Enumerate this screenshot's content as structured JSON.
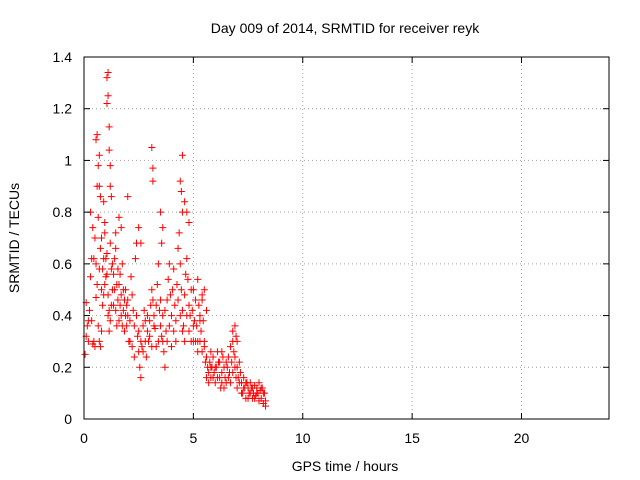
{
  "chart_data": {
    "type": "scatter",
    "title": "Day 009 of 2014, SRMTID for receiver reyk",
    "xlabel": "GPS time / hours",
    "ylabel": "SRMTID / TECUs",
    "xlim": [
      0,
      24
    ],
    "ylim": [
      0,
      1.4
    ],
    "x_ticks": [
      0,
      5,
      10,
      15,
      20
    ],
    "x_tick_labels": [
      "0",
      "5",
      "10",
      "15",
      "20"
    ],
    "y_ticks": [
      0,
      0.2,
      0.4,
      0.6,
      0.8,
      1.0,
      1.2,
      1.4
    ],
    "y_tick_labels": [
      "0",
      "0.2",
      "0.4",
      "0.6",
      "0.8",
      "1",
      "1.2",
      "1.4"
    ],
    "grid": true,
    "marker": "plus",
    "series": [
      {
        "name": "SRMTID",
        "color": "#ff0000",
        "points": [
          [
            0.05,
            0.25
          ],
          [
            0.1,
            0.32
          ],
          [
            0.15,
            0.36
          ],
          [
            0.2,
            0.3
          ],
          [
            0.25,
            0.42
          ],
          [
            0.3,
            0.55
          ],
          [
            0.35,
            0.38
          ],
          [
            0.4,
            0.29
          ],
          [
            0.45,
            0.62
          ],
          [
            0.5,
            0.7
          ],
          [
            0.55,
            0.47
          ],
          [
            0.6,
            0.9
          ],
          [
            0.65,
            0.78
          ],
          [
            0.7,
            0.58
          ],
          [
            0.75,
            0.66
          ],
          [
            0.8,
            0.5
          ],
          [
            0.85,
            0.44
          ],
          [
            0.9,
            0.62
          ],
          [
            0.95,
            0.72
          ],
          [
            1.0,
            0.55
          ],
          [
            1.05,
            0.64
          ],
          [
            1.1,
            0.4
          ],
          [
            1.15,
            0.34
          ],
          [
            1.2,
            0.68
          ],
          [
            1.25,
            0.58
          ],
          [
            1.3,
            0.5
          ],
          [
            1.35,
            0.44
          ],
          [
            1.4,
            0.62
          ],
          [
            1.45,
            0.66
          ],
          [
            1.5,
            0.52
          ],
          [
            1.55,
            0.46
          ],
          [
            1.6,
            0.38
          ],
          [
            1.65,
            0.56
          ],
          [
            1.7,
            0.48
          ],
          [
            1.75,
            0.6
          ],
          [
            1.8,
            0.42
          ],
          [
            1.85,
            0.34
          ],
          [
            1.9,
            0.5
          ],
          [
            1.95,
            0.44
          ],
          [
            2.0,
            0.4
          ],
          [
            2.05,
            0.3
          ],
          [
            2.1,
            0.38
          ],
          [
            2.15,
            0.55
          ],
          [
            2.2,
            0.48
          ],
          [
            2.25,
            0.42
          ],
          [
            2.3,
            0.36
          ],
          [
            2.35,
            0.62
          ],
          [
            2.4,
            0.68
          ],
          [
            2.45,
            0.32
          ],
          [
            2.5,
            0.26
          ],
          [
            2.55,
            0.2
          ],
          [
            2.6,
            0.16
          ],
          [
            2.65,
            0.28
          ],
          [
            2.7,
            0.36
          ],
          [
            2.75,
            0.42
          ],
          [
            2.8,
            0.3
          ],
          [
            2.85,
            0.24
          ],
          [
            2.9,
            0.34
          ],
          [
            2.95,
            0.3
          ],
          [
            3.0,
            0.38
          ],
          [
            3.05,
            0.44
          ],
          [
            3.1,
            0.5
          ],
          [
            3.15,
            0.46
          ],
          [
            3.2,
            0.4
          ],
          [
            3.25,
            0.35
          ],
          [
            3.3,
            0.28
          ],
          [
            3.35,
            0.52
          ],
          [
            3.4,
            0.6
          ],
          [
            3.45,
            0.42
          ],
          [
            3.5,
            0.36
          ],
          [
            3.55,
            0.32
          ],
          [
            3.6,
            0.3
          ],
          [
            3.65,
            0.26
          ],
          [
            3.7,
            0.2
          ],
          [
            3.75,
            0.34
          ],
          [
            3.8,
            0.46
          ],
          [
            3.85,
            0.54
          ],
          [
            3.9,
            0.6
          ],
          [
            3.95,
            0.48
          ],
          [
            4.0,
            0.4
          ],
          [
            4.05,
            0.5
          ],
          [
            4.1,
            0.58
          ],
          [
            4.15,
            0.44
          ],
          [
            4.2,
            0.38
          ],
          [
            4.25,
            0.52
          ],
          [
            4.3,
            0.66
          ],
          [
            4.35,
            0.72
          ],
          [
            4.4,
            0.6
          ],
          [
            4.45,
            0.5
          ],
          [
            4.5,
            0.42
          ],
          [
            4.55,
            0.36
          ],
          [
            4.6,
            0.48
          ],
          [
            4.65,
            0.56
          ],
          [
            4.7,
            0.62
          ],
          [
            4.75,
            0.54
          ],
          [
            4.8,
            0.44
          ],
          [
            4.85,
            0.4
          ],
          [
            4.9,
            0.5
          ],
          [
            4.95,
            0.42
          ],
          [
            5.0,
            0.3
          ],
          [
            5.05,
            0.38
          ],
          [
            5.1,
            0.46
          ],
          [
            5.15,
            0.36
          ],
          [
            5.2,
            0.3
          ],
          [
            5.25,
            0.44
          ],
          [
            5.3,
            0.4
          ],
          [
            5.35,
            0.34
          ],
          [
            5.4,
            0.46
          ],
          [
            5.45,
            0.38
          ],
          [
            5.5,
            0.28
          ],
          [
            5.55,
            0.22
          ],
          [
            5.6,
            0.24
          ],
          [
            5.65,
            0.2
          ],
          [
            5.7,
            0.18
          ],
          [
            5.75,
            0.22
          ],
          [
            5.8,
            0.16
          ],
          [
            5.85,
            0.2
          ],
          [
            5.9,
            0.24
          ],
          [
            5.95,
            0.18
          ],
          [
            6.0,
            0.14
          ],
          [
            6.05,
            0.2
          ],
          [
            6.1,
            0.26
          ],
          [
            6.15,
            0.22
          ],
          [
            6.2,
            0.16
          ],
          [
            6.25,
            0.12
          ],
          [
            6.3,
            0.18
          ],
          [
            6.35,
            0.24
          ],
          [
            6.4,
            0.2
          ],
          [
            6.45,
            0.16
          ],
          [
            6.5,
            0.14
          ],
          [
            6.55,
            0.2
          ],
          [
            6.6,
            0.24
          ],
          [
            6.65,
            0.18
          ],
          [
            6.7,
            0.28
          ],
          [
            6.75,
            0.22
          ],
          [
            6.8,
            0.3
          ],
          [
            6.85,
            0.26
          ],
          [
            6.9,
            0.2
          ],
          [
            6.95,
            0.16
          ],
          [
            7.0,
            0.12
          ],
          [
            7.05,
            0.16
          ],
          [
            7.1,
            0.22
          ],
          [
            7.15,
            0.18
          ],
          [
            7.2,
            0.14
          ],
          [
            7.25,
            0.1
          ],
          [
            7.3,
            0.16
          ],
          [
            7.35,
            0.12
          ],
          [
            7.4,
            0.08
          ],
          [
            7.45,
            0.14
          ],
          [
            7.5,
            0.12
          ],
          [
            7.55,
            0.1
          ],
          [
            7.6,
            0.14
          ],
          [
            7.65,
            0.12
          ],
          [
            7.7,
            0.08
          ],
          [
            7.75,
            0.1
          ],
          [
            7.8,
            0.13
          ],
          [
            7.85,
            0.09
          ],
          [
            7.9,
            0.12
          ],
          [
            7.95,
            0.1
          ],
          [
            8.0,
            0.14
          ],
          [
            8.05,
            0.11
          ],
          [
            8.1,
            0.08
          ],
          [
            8.15,
            0.12
          ],
          [
            8.2,
            0.06
          ],
          [
            8.25,
            0.1
          ],
          [
            8.3,
            0.05
          ],
          [
            0.1,
            0.45
          ],
          [
            0.2,
            0.38
          ],
          [
            0.3,
            0.8
          ],
          [
            0.35,
            0.62
          ],
          [
            0.4,
            0.74
          ],
          [
            0.45,
            0.3
          ],
          [
            0.5,
            0.28
          ],
          [
            0.55,
            0.6
          ],
          [
            0.6,
            0.52
          ],
          [
            0.65,
            0.36
          ],
          [
            0.7,
            0.3
          ],
          [
            0.75,
            0.28
          ],
          [
            0.8,
            0.34
          ],
          [
            0.85,
            0.58
          ],
          [
            0.9,
            0.48
          ],
          [
            0.95,
            0.52
          ],
          [
            1.0,
            0.62
          ],
          [
            1.05,
            0.56
          ],
          [
            1.1,
            0.48
          ],
          [
            1.15,
            0.42
          ],
          [
            1.2,
            0.38
          ],
          [
            1.25,
            0.44
          ],
          [
            1.3,
            0.6
          ],
          [
            1.35,
            0.56
          ],
          [
            1.4,
            0.5
          ],
          [
            1.45,
            0.42
          ],
          [
            1.5,
            0.36
          ],
          [
            1.55,
            0.58
          ],
          [
            1.6,
            0.52
          ],
          [
            1.65,
            0.44
          ],
          [
            1.7,
            0.4
          ],
          [
            1.75,
            0.36
          ],
          [
            1.8,
            0.5
          ],
          [
            1.85,
            0.46
          ],
          [
            1.9,
            0.4
          ],
          [
            1.95,
            0.36
          ],
          [
            2.0,
            0.46
          ],
          [
            2.1,
            0.3
          ],
          [
            2.2,
            0.28
          ],
          [
            2.3,
            0.24
          ],
          [
            2.4,
            0.4
          ],
          [
            2.5,
            0.34
          ],
          [
            2.6,
            0.3
          ],
          [
            2.7,
            0.26
          ],
          [
            2.8,
            0.38
          ],
          [
            2.9,
            0.4
          ],
          [
            3.0,
            0.32
          ],
          [
            3.1,
            0.28
          ],
          [
            3.2,
            0.36
          ],
          [
            3.3,
            0.44
          ],
          [
            3.4,
            0.3
          ],
          [
            3.5,
            0.46
          ],
          [
            3.6,
            0.4
          ],
          [
            3.7,
            0.42
          ],
          [
            3.8,
            0.3
          ],
          [
            3.9,
            0.36
          ],
          [
            4.0,
            0.28
          ],
          [
            4.1,
            0.34
          ],
          [
            4.2,
            0.3
          ],
          [
            4.3,
            0.46
          ],
          [
            4.4,
            0.4
          ],
          [
            4.5,
            0.34
          ],
          [
            4.6,
            0.3
          ],
          [
            4.7,
            0.4
          ],
          [
            4.8,
            0.34
          ],
          [
            4.9,
            0.3
          ],
          [
            5.0,
            0.36
          ],
          [
            5.1,
            0.3
          ],
          [
            5.2,
            0.26
          ],
          [
            5.3,
            0.3
          ],
          [
            5.4,
            0.26
          ],
          [
            5.5,
            0.3
          ],
          [
            5.6,
            0.16
          ],
          [
            5.7,
            0.14
          ],
          [
            5.8,
            0.2
          ],
          [
            5.9,
            0.16
          ],
          [
            6.0,
            0.2
          ],
          [
            6.1,
            0.16
          ],
          [
            6.2,
            0.22
          ],
          [
            6.3,
            0.14
          ],
          [
            6.4,
            0.12
          ],
          [
            6.5,
            0.22
          ],
          [
            6.6,
            0.16
          ],
          [
            6.7,
            0.14
          ],
          [
            6.8,
            0.18
          ],
          [
            6.9,
            0.24
          ],
          [
            7.0,
            0.2
          ],
          [
            7.1,
            0.14
          ],
          [
            7.2,
            0.1
          ],
          [
            7.3,
            0.12
          ],
          [
            7.4,
            0.14
          ],
          [
            7.5,
            0.08
          ],
          [
            7.6,
            0.1
          ],
          [
            7.7,
            0.12
          ],
          [
            7.8,
            0.08
          ],
          [
            7.9,
            0.1
          ],
          [
            8.0,
            0.07
          ],
          [
            8.1,
            0.12
          ],
          [
            8.2,
            0.1
          ],
          [
            8.3,
            0.07
          ],
          [
            0.6,
            1.1
          ],
          [
            0.55,
            1.08
          ],
          [
            0.7,
            1.02
          ],
          [
            0.65,
            0.98
          ],
          [
            1.05,
            1.32
          ],
          [
            1.1,
            1.34
          ],
          [
            1.1,
            1.25
          ],
          [
            1.05,
            1.22
          ],
          [
            1.15,
            1.13
          ],
          [
            1.15,
            1.04
          ],
          [
            1.2,
            0.98
          ],
          [
            1.2,
            0.9
          ],
          [
            1.25,
            0.86
          ],
          [
            0.7,
            0.9
          ],
          [
            0.75,
            0.86
          ],
          [
            3.1,
            1.05
          ],
          [
            3.15,
            0.97
          ],
          [
            3.15,
            0.92
          ],
          [
            4.5,
            1.02
          ],
          [
            4.4,
            0.92
          ],
          [
            4.45,
            0.88
          ],
          [
            4.6,
            0.84
          ],
          [
            4.7,
            0.8
          ],
          [
            4.8,
            0.76
          ],
          [
            4.5,
            0.8
          ],
          [
            2.0,
            0.86
          ],
          [
            2.5,
            0.74
          ],
          [
            2.6,
            0.68
          ],
          [
            3.5,
            0.8
          ],
          [
            3.6,
            0.74
          ],
          [
            3.55,
            0.68
          ],
          [
            1.6,
            0.78
          ],
          [
            1.7,
            0.74
          ],
          [
            1.45,
            0.72
          ],
          [
            0.9,
            0.84
          ],
          [
            0.95,
            0.76
          ],
          [
            0.8,
            0.7
          ],
          [
            5.0,
            0.5
          ],
          [
            5.2,
            0.54
          ],
          [
            5.4,
            0.48
          ],
          [
            5.5,
            0.5
          ],
          [
            6.8,
            0.34
          ],
          [
            6.9,
            0.36
          ],
          [
            7.0,
            0.3
          ],
          [
            6.95,
            0.32
          ],
          [
            5.6,
            0.42
          ],
          [
            5.3,
            0.38
          ],
          [
            5.8,
            0.26
          ],
          [
            6.3,
            0.26
          ]
        ]
      }
    ]
  }
}
